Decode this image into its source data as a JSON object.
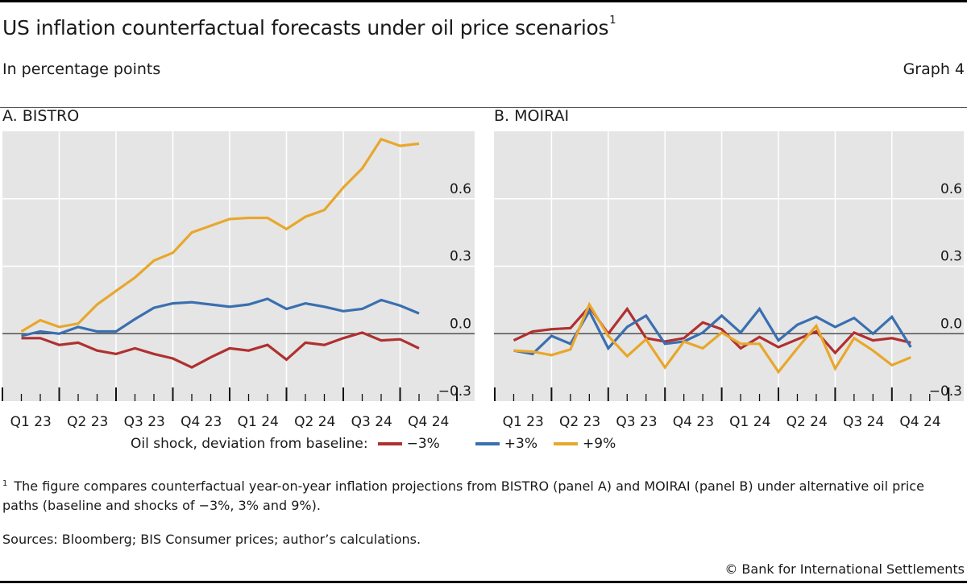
{
  "header": {
    "title": "US inflation counterfactual forecasts under oil price scenarios",
    "title_footnote_mark": "1",
    "subtitle": "In percentage points",
    "graph_number": "Graph 4"
  },
  "legend": {
    "label": "Oil shock, deviation from baseline:",
    "items": [
      {
        "name": "−3%",
        "color": "#b03030"
      },
      {
        "name": "+3%",
        "color": "#3a6fb0"
      },
      {
        "name": "+9%",
        "color": "#e8a72c"
      }
    ]
  },
  "footnote": {
    "mark": "1",
    "text": "The figure compares counterfactual year-on-year inflation projections from BISTRO (panel A) and MOIRAI (panel B) under alternative oil price paths (baseline and shocks of −3%, 3% and 9%)."
  },
  "sources": "Sources: Bloomberg; BIS Consumer prices; author’s calculations.",
  "copyright": "© Bank for International Settlements",
  "colors": {
    "panel_bg": "#e5e5e5",
    "gridline": "#ffffff",
    "zero_line": "#333333"
  },
  "chart_data": [
    {
      "type": "line",
      "title": "A. BISTRO",
      "xlabel": "",
      "ylabel": "",
      "x_frequency": "monthly",
      "x_start": "Jan 2023",
      "x_end": "Oct 2024",
      "categories": [
        "Q1 23",
        "Q2 23",
        "Q3 23",
        "Q4 23",
        "Q1 24",
        "Q2 24",
        "Q3 24",
        "Q4 24"
      ],
      "yticks": [
        -0.3,
        0.0,
        0.3,
        0.6
      ],
      "ytick_labels": [
        "−0.3",
        "0.0",
        "0.3",
        "0.6"
      ],
      "ylim": [
        -0.3,
        0.9
      ],
      "y_axis_side": "right",
      "grid": true,
      "series": [
        {
          "name": "−3%",
          "color": "#b03030",
          "values": [
            -0.02,
            -0.02,
            -0.05,
            -0.04,
            -0.075,
            -0.09,
            -0.065,
            -0.09,
            -0.11,
            -0.15,
            -0.105,
            -0.065,
            -0.075,
            -0.05,
            -0.115,
            -0.04,
            -0.05,
            -0.02,
            0.005,
            -0.03,
            -0.025,
            -0.065
          ]
        },
        {
          "name": "+3%",
          "color": "#3a6fb0",
          "values": [
            -0.01,
            0.01,
            0.0,
            0.03,
            0.01,
            0.01,
            0.065,
            0.115,
            0.135,
            0.14,
            0.13,
            0.12,
            0.13,
            0.155,
            0.11,
            0.135,
            0.12,
            0.1,
            0.11,
            0.15,
            0.125,
            0.09
          ]
        },
        {
          "name": "+9%",
          "color": "#e8a72c",
          "values": [
            0.01,
            0.06,
            0.03,
            0.045,
            0.13,
            0.19,
            0.25,
            0.325,
            0.36,
            0.45,
            0.48,
            0.51,
            0.515,
            0.515,
            0.465,
            0.52,
            0.55,
            0.65,
            0.735,
            0.865,
            0.835,
            0.845
          ]
        }
      ]
    },
    {
      "type": "line",
      "title": "B. MOIRAI",
      "xlabel": "",
      "ylabel": "",
      "x_frequency": "monthly",
      "x_start": "Jan 2023",
      "x_end": "Oct 2024",
      "categories": [
        "Q1 23",
        "Q2 23",
        "Q3 23",
        "Q4 23",
        "Q1 24",
        "Q2 24",
        "Q3 24",
        "Q4 24"
      ],
      "yticks": [
        -0.3,
        0.0,
        0.3,
        0.6
      ],
      "ytick_labels": [
        "−0.3",
        "0.0",
        "0.3",
        "0.6"
      ],
      "ylim": [
        -0.3,
        0.9
      ],
      "y_axis_side": "right",
      "grid": true,
      "series": [
        {
          "name": "−3%",
          "color": "#b03030",
          "values": [
            -0.03,
            0.01,
            0.02,
            0.025,
            0.12,
            0.0,
            0.11,
            -0.02,
            -0.035,
            -0.02,
            0.05,
            0.02,
            -0.065,
            -0.015,
            -0.06,
            -0.025,
            0.01,
            -0.085,
            0.005,
            -0.03,
            -0.02,
            -0.04
          ]
        },
        {
          "name": "+3%",
          "color": "#3a6fb0",
          "values": [
            -0.075,
            -0.09,
            -0.01,
            -0.045,
            0.1,
            -0.065,
            0.03,
            0.08,
            -0.045,
            -0.035,
            0.005,
            0.08,
            0.005,
            0.11,
            -0.03,
            0.04,
            0.075,
            0.03,
            0.07,
            0.0,
            0.075,
            -0.06
          ]
        },
        {
          "name": "+9%",
          "color": "#e8a72c",
          "values": [
            -0.075,
            -0.08,
            -0.095,
            -0.07,
            0.13,
            -0.01,
            -0.1,
            -0.025,
            -0.15,
            -0.035,
            -0.065,
            0.005,
            -0.045,
            -0.045,
            -0.17,
            -0.065,
            0.035,
            -0.155,
            -0.02,
            -0.075,
            -0.14,
            -0.105
          ]
        }
      ]
    }
  ]
}
